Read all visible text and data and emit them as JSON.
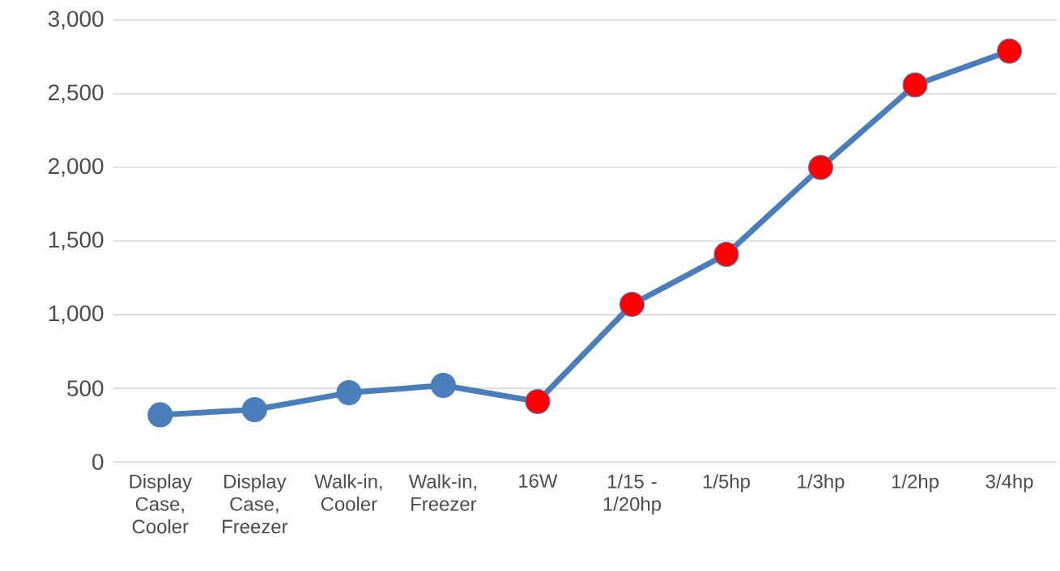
{
  "chart_data": {
    "type": "line",
    "categories": [
      "Display Case, Cooler",
      "Display Case, Freezer",
      "Walk-in, Cooler",
      "Walk-in, Freezer",
      "16W",
      "1/15 - 1/20hp",
      "1/5hp",
      "1/3hp",
      "1/2hp",
      "3/4hp"
    ],
    "series": [
      {
        "color": "#4a7ebb",
        "colors": [
          "#4a7ebb",
          "#4a7ebb",
          "#4a7ebb",
          "#4a7ebb",
          "#ff0000",
          "#ff0000",
          "#ff0000",
          "#ff0000",
          "#ff0000",
          "#ff0000"
        ],
        "values": [
          320,
          355,
          470,
          520,
          410,
          1070,
          1410,
          2000,
          2560,
          2790
        ]
      }
    ],
    "ylim": [
      0,
      3000
    ],
    "yticks": [
      0,
      500,
      {
        "value": 1000,
        "label": "1,000"
      },
      {
        "value": 1500,
        "label": "1,500"
      },
      {
        "value": 2000,
        "label": "2,000"
      },
      {
        "value": 2500,
        "label": "2,500"
      },
      {
        "value": 3000,
        "label": "3,000"
      }
    ],
    "grid": "y",
    "marker": "circle"
  }
}
